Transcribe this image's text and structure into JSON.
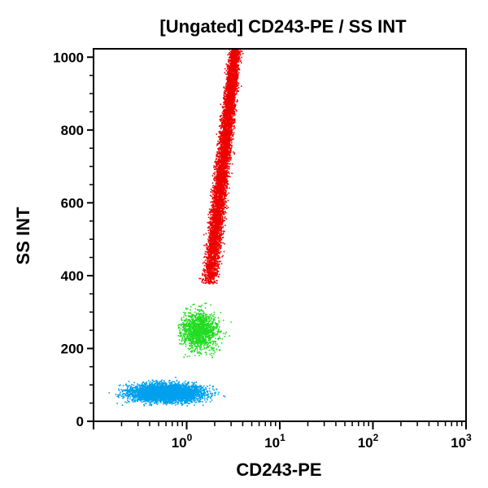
{
  "chart_data": {
    "type": "scatter",
    "title": "[Ungated] CD243-PE / SS INT",
    "xlabel": "CD243-PE",
    "ylabel": "SS INT",
    "x_scale": "log",
    "xlim": [
      0.1,
      1000
    ],
    "ylim": [
      0,
      1023
    ],
    "grid": false,
    "x_ticks": [
      {
        "value": 1,
        "base": "10",
        "exp": "0"
      },
      {
        "value": 10,
        "base": "10",
        "exp": "1"
      },
      {
        "value": 100,
        "base": "10",
        "exp": "2"
      },
      {
        "value": 1000,
        "base": "10",
        "exp": "3"
      }
    ],
    "y_ticks": [
      {
        "value": 0,
        "label": "0"
      },
      {
        "value": 200,
        "label": "200"
      },
      {
        "value": 400,
        "label": "400"
      },
      {
        "value": 600,
        "label": "600"
      },
      {
        "value": 800,
        "label": "800"
      },
      {
        "value": 1000,
        "label": "1000"
      }
    ],
    "series": [
      {
        "color": "#00a0ee",
        "count": 4200,
        "x_range": [
          0.12,
          8
        ],
        "y_range": [
          30,
          170
        ],
        "x_center": 0.6,
        "y_center": 80
      },
      {
        "color": "#22dd22",
        "count": 1400,
        "x_range": [
          0.8,
          6
        ],
        "y_range": [
          170,
          380
        ],
        "x_center": 1.3,
        "y_center": 250
      },
      {
        "color": "#ee0000",
        "count": 6000,
        "x_range": [
          1.3,
          4.5
        ],
        "y_range": [
          380,
          1023
        ],
        "x_center": 2.6,
        "y_center": 700
      }
    ]
  }
}
